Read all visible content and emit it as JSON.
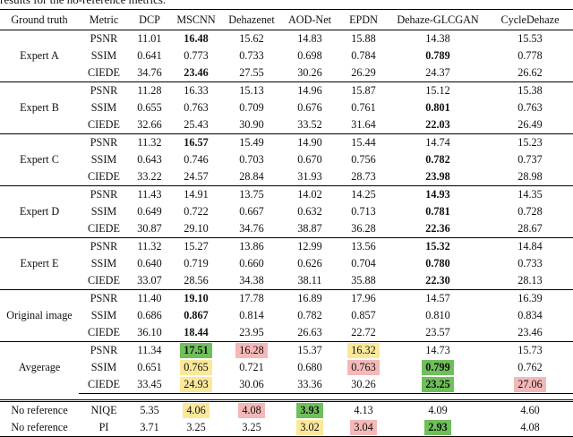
{
  "caption": "results for the no-reference metrics.",
  "headers": [
    "Ground truth",
    "Metric",
    "DCP",
    "MSCNN",
    "Dehazenet",
    "AOD-Net",
    "EPDN",
    "Dehaze-GLCGAN",
    "CycleDehaze"
  ],
  "colors": {
    "green": "#6fbf5a",
    "yellow": "#fbe89a",
    "red": "#f4b8b8"
  },
  "groups": [
    {
      "name": "Expert A",
      "rows": [
        {
          "metric": "PSNR",
          "values": [
            "11.01",
            "16.48",
            "15.62",
            "14.83",
            "15.88",
            "14.38",
            "15.53"
          ],
          "bold": [
            1
          ]
        },
        {
          "metric": "SSIM",
          "values": [
            "0.641",
            "0.773",
            "0.733",
            "0.698",
            "0.784",
            "0.789",
            "0.778"
          ],
          "bold": [
            5
          ]
        },
        {
          "metric": "CIEDE",
          "values": [
            "34.76",
            "23.46",
            "27.55",
            "30.26",
            "26.29",
            "24.37",
            "26.62"
          ],
          "bold": [
            1
          ]
        }
      ]
    },
    {
      "name": "Expert B",
      "rows": [
        {
          "metric": "PSNR",
          "values": [
            "11.28",
            "16.33",
            "15.13",
            "14.96",
            "15.87",
            "15.12",
            "15.38"
          ],
          "bold": []
        },
        {
          "metric": "SSIM",
          "values": [
            "0.655",
            "0.763",
            "0.709",
            "0.676",
            "0.761",
            "0.801",
            "0.763"
          ],
          "bold": [
            5
          ]
        },
        {
          "metric": "CIEDE",
          "values": [
            "32.66",
            "25.43",
            "30.90",
            "33.52",
            "31.64",
            "22.03",
            "26.49"
          ],
          "bold": [
            5
          ]
        }
      ]
    },
    {
      "name": "Expert C",
      "rows": [
        {
          "metric": "PSNR",
          "values": [
            "11.32",
            "16.57",
            "15.49",
            "14.90",
            "15.44",
            "14.74",
            "15.23"
          ],
          "bold": [
            1
          ]
        },
        {
          "metric": "SSIM",
          "values": [
            "0.643",
            "0.746",
            "0.703",
            "0.670",
            "0.756",
            "0.782",
            "0.737"
          ],
          "bold": [
            5
          ]
        },
        {
          "metric": "CIEDE",
          "values": [
            "33.22",
            "24.57",
            "28.84",
            "31.93",
            "28.73",
            "23.98",
            "28.98"
          ],
          "bold": [
            5
          ]
        }
      ]
    },
    {
      "name": "Expert D",
      "rows": [
        {
          "metric": "PSNR",
          "values": [
            "11.43",
            "14.91",
            "13.75",
            "14.02",
            "14.25",
            "14.93",
            "14.35"
          ],
          "bold": [
            5
          ]
        },
        {
          "metric": "SSIM",
          "values": [
            "0.649",
            "0.722",
            "0.667",
            "0.632",
            "0.713",
            "0.781",
            "0.728"
          ],
          "bold": [
            5
          ]
        },
        {
          "metric": "CIEDE",
          "values": [
            "30.87",
            "29.10",
            "34.76",
            "38.87",
            "36.28",
            "22.36",
            "28.67"
          ],
          "bold": [
            5
          ]
        }
      ]
    },
    {
      "name": "Expert E",
      "rows": [
        {
          "metric": "PSNR",
          "values": [
            "11.32",
            "15.27",
            "13.86",
            "12.99",
            "13.56",
            "15.32",
            "14.84"
          ],
          "bold": [
            5
          ]
        },
        {
          "metric": "SSIM",
          "values": [
            "0.640",
            "0.719",
            "0.660",
            "0.626",
            "0.704",
            "0.780",
            "0.733"
          ],
          "bold": [
            5
          ]
        },
        {
          "metric": "CIEDE",
          "values": [
            "33.07",
            "28.56",
            "34.38",
            "38.11",
            "35.88",
            "22.30",
            "28.13"
          ],
          "bold": [
            5
          ]
        }
      ]
    },
    {
      "name": "Original image",
      "rows": [
        {
          "metric": "PSNR",
          "values": [
            "11.40",
            "19.10",
            "17.78",
            "16.89",
            "17.96",
            "14.57",
            "16.39"
          ],
          "bold": [
            1
          ]
        },
        {
          "metric": "SSIM",
          "values": [
            "0.686",
            "0.867",
            "0.814",
            "0.782",
            "0.857",
            "0.810",
            "0.834"
          ],
          "bold": [
            1
          ]
        },
        {
          "metric": "CIEDE",
          "values": [
            "36.10",
            "18.44",
            "23.95",
            "26.63",
            "22.72",
            "23.57",
            "23.46"
          ],
          "bold": [
            1
          ]
        }
      ]
    },
    {
      "name": "Avgerage",
      "rows": [
        {
          "metric": "PSNR",
          "values": [
            "11.34",
            "17.51",
            "16.28",
            "15.37",
            "16.32",
            "14.73",
            "15.73"
          ],
          "bold": [
            1
          ],
          "hl": {
            "1": "green",
            "2": "red",
            "4": "yellow"
          }
        },
        {
          "metric": "SSIM",
          "values": [
            "0.651",
            "0.765",
            "0.721",
            "0.680",
            "0.763",
            "0.799",
            "0.762"
          ],
          "bold": [
            5
          ],
          "hl": {
            "1": "yellow",
            "4": "red",
            "5": "green"
          }
        },
        {
          "metric": "CIEDE",
          "values": [
            "33.45",
            "24.93",
            "30.06",
            "33.36",
            "30.26",
            "23.25",
            "27.06"
          ],
          "bold": [
            5
          ],
          "hl": {
            "1": "yellow",
            "5": "green",
            "6": "red"
          }
        }
      ]
    }
  ],
  "noref": [
    {
      "label": "No reference",
      "metric": "NIQE",
      "values": [
        "5.35",
        "4.06",
        "4.08",
        "3.93",
        "4.13",
        "4.09",
        "4.60"
      ],
      "bold": [
        3
      ],
      "hl": {
        "1": "yellow",
        "2": "red",
        "3": "green"
      }
    },
    {
      "label": "No reference",
      "metric": "PI",
      "values": [
        "3.71",
        "3.25",
        "3.25",
        "3.02",
        "3.04",
        "2.93",
        "4.08"
      ],
      "bold": [
        5
      ],
      "hl": {
        "3": "yellow",
        "4": "red",
        "5": "green"
      }
    }
  ]
}
